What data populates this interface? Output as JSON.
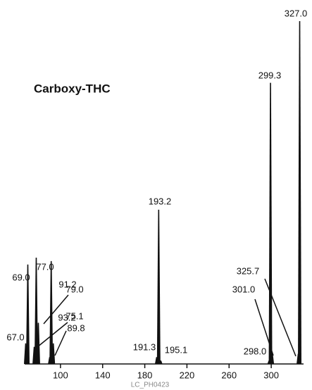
{
  "chart_data": {
    "type": "spectrum",
    "title": "Carboxy-THC",
    "caption": "LC_PH0423",
    "color": "#111111",
    "x": [
      {
        "value": 67,
        "label": "67.0"
      },
      {
        "value": 69,
        "label": "69.0"
      },
      {
        "value": 75.1,
        "label": "75.1"
      },
      {
        "value": 77,
        "label": "77.0"
      },
      {
        "value": 79,
        "label": "79.0"
      },
      {
        "value": 89.8,
        "label": "89.8"
      },
      {
        "value": 91.2,
        "label": "91.2"
      },
      {
        "value": 93.2,
        "label": "93.2"
      },
      {
        "value": 191.3,
        "label": "191.3"
      },
      {
        "value": 193.2,
        "label": "193.2"
      },
      {
        "value": 195.1,
        "label": "195.1"
      },
      {
        "value": 298,
        "label": "298.0"
      },
      {
        "value": 299.3,
        "label": "299.3"
      },
      {
        "value": 301,
        "label": "301.0"
      },
      {
        "value": 325.7,
        "label": "325.7"
      },
      {
        "value": 327,
        "label": "327.0"
      }
    ],
    "values": [
      6,
      29,
      5,
      31,
      12,
      2,
      30,
      6,
      2,
      45,
      1,
      1,
      82,
      3,
      3,
      100
    ],
    "xlim": [
      66,
      330
    ],
    "ylim": [
      0,
      100
    ],
    "xticks": [
      100,
      140,
      180,
      220,
      260,
      300
    ]
  }
}
